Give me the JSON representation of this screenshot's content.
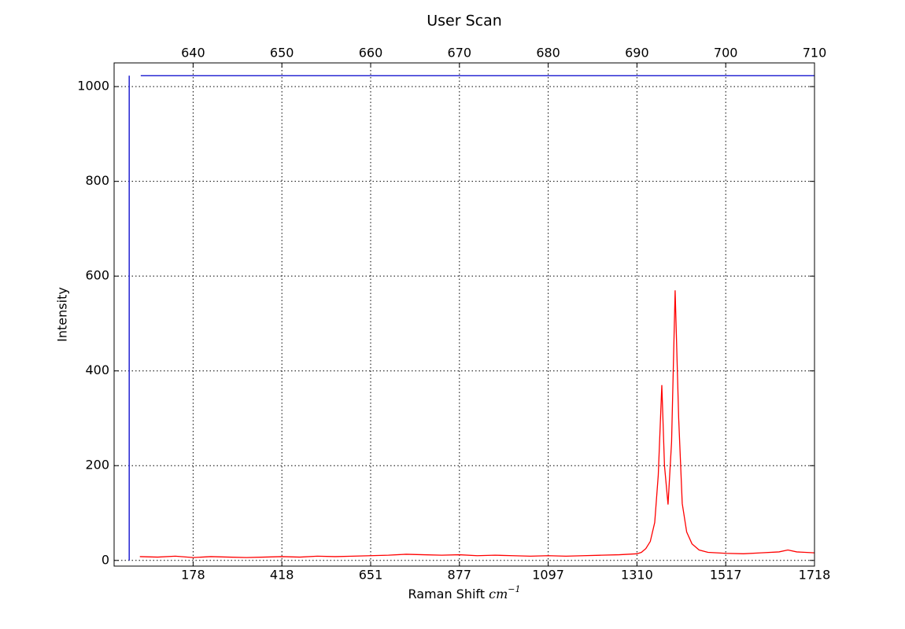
{
  "chart_data": {
    "type": "line",
    "title": "User Scan",
    "xlabel": "Raman Shift",
    "xlabel_unit": "cm",
    "xlabel_unit_power": "−1",
    "ylabel": "Intensity",
    "xlim": [
      631.1,
      710
    ],
    "ylim": [
      -12,
      1050
    ],
    "x2ticks": [
      640,
      650,
      660,
      670,
      680,
      690,
      700,
      710
    ],
    "xticks": [
      {
        "value": 640,
        "label": "178"
      },
      {
        "value": 650,
        "label": "418"
      },
      {
        "value": 660,
        "label": "651"
      },
      {
        "value": 670,
        "label": "877"
      },
      {
        "value": 680,
        "label": "1097"
      },
      {
        "value": 690,
        "label": "1310"
      },
      {
        "value": 700,
        "label": "1517"
      },
      {
        "value": 710,
        "label": "1718"
      }
    ],
    "yticks": [
      0,
      200,
      400,
      600,
      800,
      1000
    ],
    "grid": true,
    "series": [
      {
        "color": "#0000cc",
        "x": [
          632.8,
          632.8
        ],
        "values": [
          0,
          1023
        ]
      },
      {
        "color": "#0000cc",
        "x": [
          634.1,
          710
        ],
        "values": [
          1023,
          1023
        ]
      },
      {
        "color": "#ff0000",
        "x": [
          634,
          636,
          638,
          640,
          642,
          644,
          646,
          648,
          650,
          652,
          654,
          656,
          658,
          660,
          662,
          664,
          666,
          668,
          670,
          672,
          674,
          676,
          678,
          680,
          682,
          684,
          686,
          688,
          690,
          690.5,
          691,
          691.5,
          692,
          692.4,
          692.8,
          693.1,
          693.5,
          693.9,
          694.3,
          694.7,
          695.1,
          695.6,
          696.2,
          697,
          698,
          700,
          702,
          704,
          706,
          707,
          708,
          710
        ],
        "values": [
          8,
          7,
          9,
          6,
          8,
          7,
          6,
          7,
          8,
          7,
          9,
          8,
          9,
          10,
          11,
          13,
          12,
          11,
          12,
          10,
          11,
          10,
          9,
          10,
          9,
          10,
          11,
          12,
          14,
          17,
          25,
          40,
          80,
          180,
          370,
          200,
          118,
          250,
          570,
          300,
          120,
          60,
          35,
          22,
          17,
          15,
          14,
          16,
          18,
          22,
          18,
          16
        ]
      }
    ]
  }
}
